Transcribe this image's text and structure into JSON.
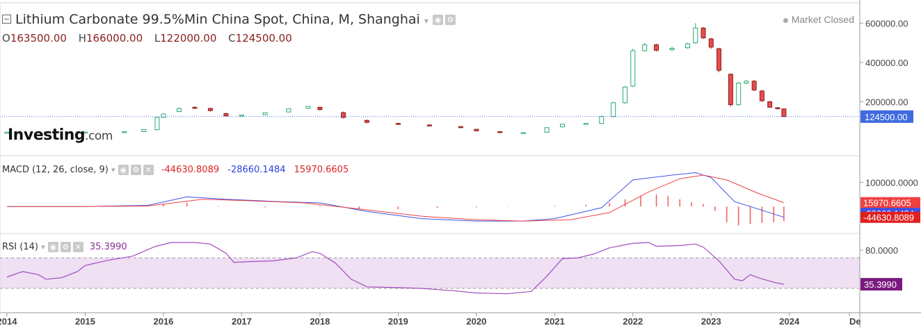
{
  "header": {
    "title": "Lithium Carbonate 99.5%Min China Spot, China, M, Shanghai",
    "ohlc": [
      {
        "label": "O",
        "value": "163500.00"
      },
      {
        "label": "H",
        "value": "166000.00"
      },
      {
        "label": "L",
        "value": "122000.00"
      },
      {
        "label": "C",
        "value": "124500.00"
      }
    ],
    "market_status": "Market Closed"
  },
  "logo": {
    "main": "Investing",
    "suffix": ".com"
  },
  "colors": {
    "up": "#26c281",
    "down": "#e44c4c",
    "last_price_tag": "#3f6ae0",
    "macd_line": "#3b52e8",
    "signal_line": "#f04040",
    "rsi_line": "#a04cc0",
    "rsi_band": "#efe0f3",
    "rsi_tag": "#7a1a80"
  },
  "chart_data": [
    {
      "type": "candlestick",
      "title": "Lithium Carbonate 99.5%Min China Spot, China, M, Shanghai",
      "x_labels": [
        "2014",
        "2015",
        "2016",
        "2017",
        "2018",
        "2019",
        "2020",
        "2021",
        "2022",
        "2023",
        "2024",
        "De"
      ],
      "y_ticks": [
        "200000.00",
        "400000.00",
        "600000.00"
      ],
      "last_price": "124500.00",
      "ylim": [
        0,
        640000
      ],
      "candles": [
        [
          2014.0,
          45000,
          45000,
          45000,
          45000
        ],
        [
          2014.5,
          45000,
          45500,
          44800,
          45200
        ],
        [
          2015.0,
          45200,
          46000,
          45000,
          46000
        ],
        [
          2015.5,
          46000,
          48000,
          45800,
          48000
        ],
        [
          2015.75,
          48000,
          60000,
          47000,
          58000
        ],
        [
          2015.92,
          58000,
          125000,
          56000,
          120000
        ],
        [
          2016.0,
          120000,
          140000,
          118000,
          138000
        ],
        [
          2016.2,
          150000,
          170000,
          148000,
          165000
        ],
        [
          2016.4,
          172000,
          176000,
          164000,
          170000
        ],
        [
          2016.6,
          166000,
          170000,
          150000,
          155000
        ],
        [
          2016.8,
          140000,
          145000,
          125000,
          128000
        ],
        [
          2017.0,
          128000,
          135000,
          126000,
          132000
        ],
        [
          2017.3,
          134000,
          145000,
          132000,
          144000
        ],
        [
          2017.6,
          148000,
          165000,
          146000,
          164000
        ],
        [
          2017.85,
          166000,
          178000,
          164000,
          176000
        ],
        [
          2018.0,
          172000,
          175000,
          155000,
          160000
        ],
        [
          2018.3,
          145000,
          150000,
          115000,
          120000
        ],
        [
          2018.6,
          105000,
          110000,
          90000,
          95000
        ],
        [
          2019.0,
          90000,
          94000,
          86000,
          88000
        ],
        [
          2019.4,
          82000,
          86000,
          78000,
          80000
        ],
        [
          2019.8,
          74000,
          76000,
          66000,
          68000
        ],
        [
          2020.0,
          60000,
          62000,
          50000,
          52000
        ],
        [
          2020.3,
          48000,
          50000,
          42000,
          44000
        ],
        [
          2020.6,
          42000,
          44000,
          40000,
          43000
        ],
        [
          2020.9,
          45000,
          70000,
          44000,
          68000
        ],
        [
          2021.1,
          72000,
          88000,
          70000,
          86000
        ],
        [
          2021.4,
          88000,
          92000,
          86000,
          90000
        ],
        [
          2021.6,
          90000,
          130000,
          88000,
          125000
        ],
        [
          2021.75,
          125000,
          200000,
          122000,
          195000
        ],
        [
          2021.9,
          195000,
          280000,
          190000,
          275000
        ],
        [
          2022.0,
          280000,
          470000,
          275000,
          460000
        ],
        [
          2022.15,
          460000,
          500000,
          455000,
          490000
        ],
        [
          2022.3,
          490000,
          495000,
          455000,
          462000
        ],
        [
          2022.5,
          465000,
          480000,
          458000,
          472000
        ],
        [
          2022.7,
          475000,
          500000,
          470000,
          495000
        ],
        [
          2022.8,
          500000,
          600000,
          495000,
          575000
        ],
        [
          2022.9,
          575000,
          580000,
          520000,
          525000
        ],
        [
          2023.0,
          520000,
          525000,
          470000,
          478000
        ],
        [
          2023.1,
          470000,
          475000,
          350000,
          360000
        ],
        [
          2023.25,
          340000,
          345000,
          175000,
          185000
        ],
        [
          2023.35,
          185000,
          300000,
          180000,
          295000
        ],
        [
          2023.45,
          295000,
          310000,
          290000,
          305000
        ],
        [
          2023.55,
          305000,
          310000,
          255000,
          260000
        ],
        [
          2023.65,
          255000,
          260000,
          200000,
          205000
        ],
        [
          2023.75,
          200000,
          205000,
          170000,
          172000
        ],
        [
          2023.85,
          170000,
          172000,
          160000,
          165000
        ],
        [
          2023.93,
          163500,
          166000,
          122000,
          124500
        ]
      ]
    },
    {
      "type": "line",
      "title": "MACD (12, 26, close, 9)",
      "values": [
        "-44630.8089",
        "-28660.1484",
        "15970.6605"
      ],
      "y_ticks": [
        "100000.0000"
      ],
      "ylim": [
        -100000,
        150000
      ],
      "series": [
        {
          "name": "MACD",
          "points": [
            [
              2014,
              0
            ],
            [
              2015,
              0
            ],
            [
              2015.8,
              5000
            ],
            [
              2016.3,
              40000
            ],
            [
              2016.8,
              30000
            ],
            [
              2017.5,
              20000
            ],
            [
              2018.0,
              15000
            ],
            [
              2018.6,
              -20000
            ],
            [
              2019.3,
              -50000
            ],
            [
              2020.0,
              -60000
            ],
            [
              2020.6,
              -60000
            ],
            [
              2021.0,
              -50000
            ],
            [
              2021.6,
              -5000
            ],
            [
              2022.0,
              110000
            ],
            [
              2022.5,
              130000
            ],
            [
              2022.8,
              140000
            ],
            [
              2023.0,
              120000
            ],
            [
              2023.3,
              20000
            ],
            [
              2023.6,
              -10000
            ],
            [
              2023.93,
              -44630
            ]
          ]
        },
        {
          "name": "Signal",
          "points": [
            [
              2014,
              0
            ],
            [
              2015,
              0
            ],
            [
              2015.8,
              2000
            ],
            [
              2016.5,
              30000
            ],
            [
              2017.0,
              25000
            ],
            [
              2017.8,
              15000
            ],
            [
              2018.5,
              -10000
            ],
            [
              2019.3,
              -40000
            ],
            [
              2020.0,
              -55000
            ],
            [
              2020.6,
              -60000
            ],
            [
              2021.2,
              -55000
            ],
            [
              2021.7,
              -25000
            ],
            [
              2022.2,
              60000
            ],
            [
              2022.6,
              115000
            ],
            [
              2022.9,
              130000
            ],
            [
              2023.2,
              110000
            ],
            [
              2023.6,
              55000
            ],
            [
              2023.93,
              15970
            ]
          ]
        },
        {
          "name": "Histogram",
          "bars": [
            [
              2015.5,
              1000
            ],
            [
              2016.0,
              12000
            ],
            [
              2016.3,
              16000
            ],
            [
              2016.7,
              2000
            ],
            [
              2017.3,
              -4000
            ],
            [
              2018.0,
              4000
            ],
            [
              2018.5,
              -9000
            ],
            [
              2019.0,
              -11000
            ],
            [
              2019.5,
              -6000
            ],
            [
              2020.0,
              -4000
            ],
            [
              2020.4,
              -1000
            ],
            [
              2021.0,
              3000
            ],
            [
              2021.4,
              8000
            ],
            [
              2021.7,
              15000
            ],
            [
              2021.9,
              30000
            ],
            [
              2022.1,
              45000
            ],
            [
              2022.3,
              50000
            ],
            [
              2022.45,
              44000
            ],
            [
              2022.6,
              30000
            ],
            [
              2022.75,
              18000
            ],
            [
              2022.9,
              10000
            ],
            [
              2023.05,
              -18000
            ],
            [
              2023.2,
              -65000
            ],
            [
              2023.35,
              -78000
            ],
            [
              2023.5,
              -72000
            ],
            [
              2023.65,
              -68000
            ],
            [
              2023.8,
              -65000
            ],
            [
              2023.93,
              -60000
            ]
          ]
        }
      ]
    },
    {
      "type": "line",
      "title": "RSI (14)",
      "value": "35.3990",
      "y_ticks": [
        "80.0000"
      ],
      "bands": [
        30,
        70
      ],
      "ylim": [
        0,
        100
      ],
      "series": [
        {
          "name": "RSI",
          "points": [
            [
              2014.0,
              45
            ],
            [
              2014.2,
              52
            ],
            [
              2014.4,
              48
            ],
            [
              2014.5,
              42
            ],
            [
              2014.7,
              44
            ],
            [
              2014.9,
              52
            ],
            [
              2015.0,
              60
            ],
            [
              2015.3,
              67
            ],
            [
              2015.6,
              72
            ],
            [
              2015.9,
              85
            ],
            [
              2016.1,
              90
            ],
            [
              2016.4,
              90
            ],
            [
              2016.6,
              88
            ],
            [
              2016.8,
              76
            ],
            [
              2016.9,
              64
            ],
            [
              2017.1,
              65
            ],
            [
              2017.4,
              66
            ],
            [
              2017.7,
              70
            ],
            [
              2017.9,
              78
            ],
            [
              2018.0,
              76
            ],
            [
              2018.2,
              63
            ],
            [
              2018.4,
              42
            ],
            [
              2018.6,
              32
            ],
            [
              2019.0,
              31
            ],
            [
              2019.3,
              30
            ],
            [
              2019.7,
              27
            ],
            [
              2020.0,
              24
            ],
            [
              2020.4,
              23
            ],
            [
              2020.7,
              26
            ],
            [
              2020.9,
              46
            ],
            [
              2021.1,
              69
            ],
            [
              2021.3,
              70
            ],
            [
              2021.5,
              75
            ],
            [
              2021.7,
              83
            ],
            [
              2022.0,
              89
            ],
            [
              2022.2,
              90
            ],
            [
              2022.3,
              85
            ],
            [
              2022.6,
              86
            ],
            [
              2022.8,
              88
            ],
            [
              2022.9,
              84
            ],
            [
              2023.1,
              66
            ],
            [
              2023.3,
              42
            ],
            [
              2023.4,
              40
            ],
            [
              2023.5,
              48
            ],
            [
              2023.6,
              44
            ],
            [
              2023.8,
              38
            ],
            [
              2023.93,
              35.399
            ]
          ]
        }
      ]
    }
  ]
}
